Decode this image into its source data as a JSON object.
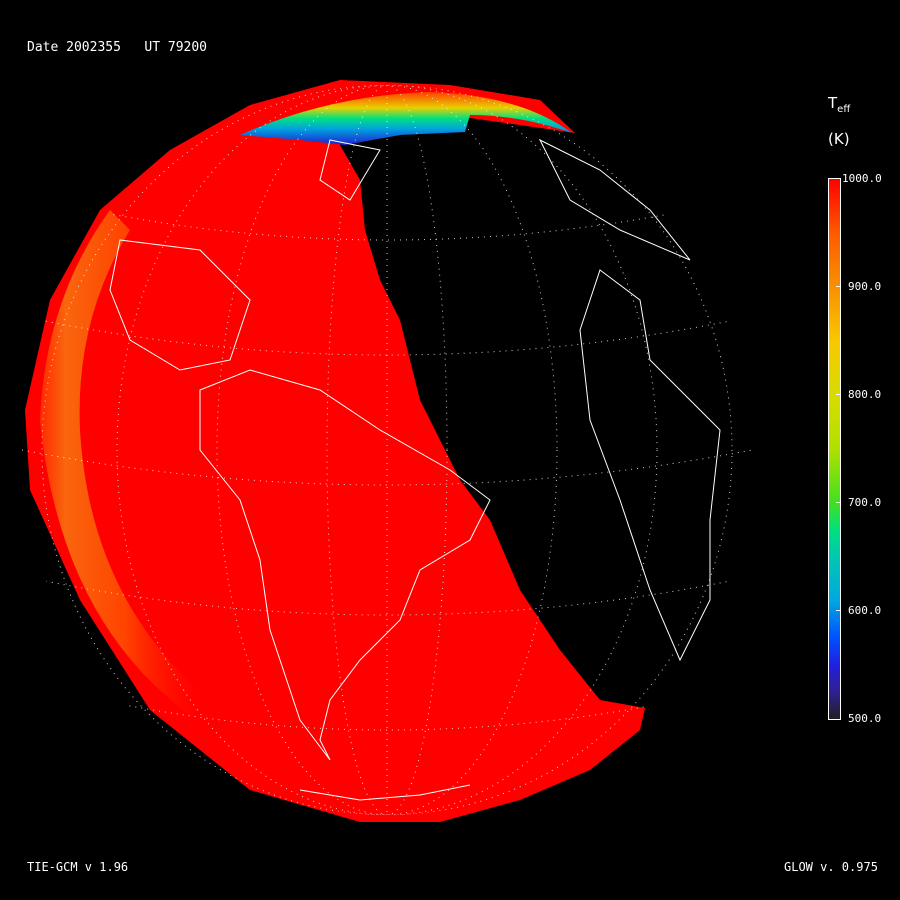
{
  "header": {
    "date_label": "Date 2002355   UT 79200"
  },
  "footer": {
    "model_label": "TIE-GCM v 1.96",
    "glow_label": "GLOW v. 0.975"
  },
  "colorbar": {
    "title_main": "T",
    "title_sub": "eff",
    "unit": "(K)",
    "ticks": [
      "1000.0",
      "900.0",
      "800.0",
      "700.0",
      "600.0",
      "500.0"
    ],
    "range": [
      500,
      1000
    ],
    "colors": {
      "max": "#ff0000",
      "mid": "#40e020",
      "min": "#202020"
    }
  },
  "map": {
    "projection": "orthographic",
    "field": "Teff",
    "dayside_color": "#ff0000",
    "night_color": "#000000",
    "graticule": "dotted",
    "coastlines": "white"
  }
}
